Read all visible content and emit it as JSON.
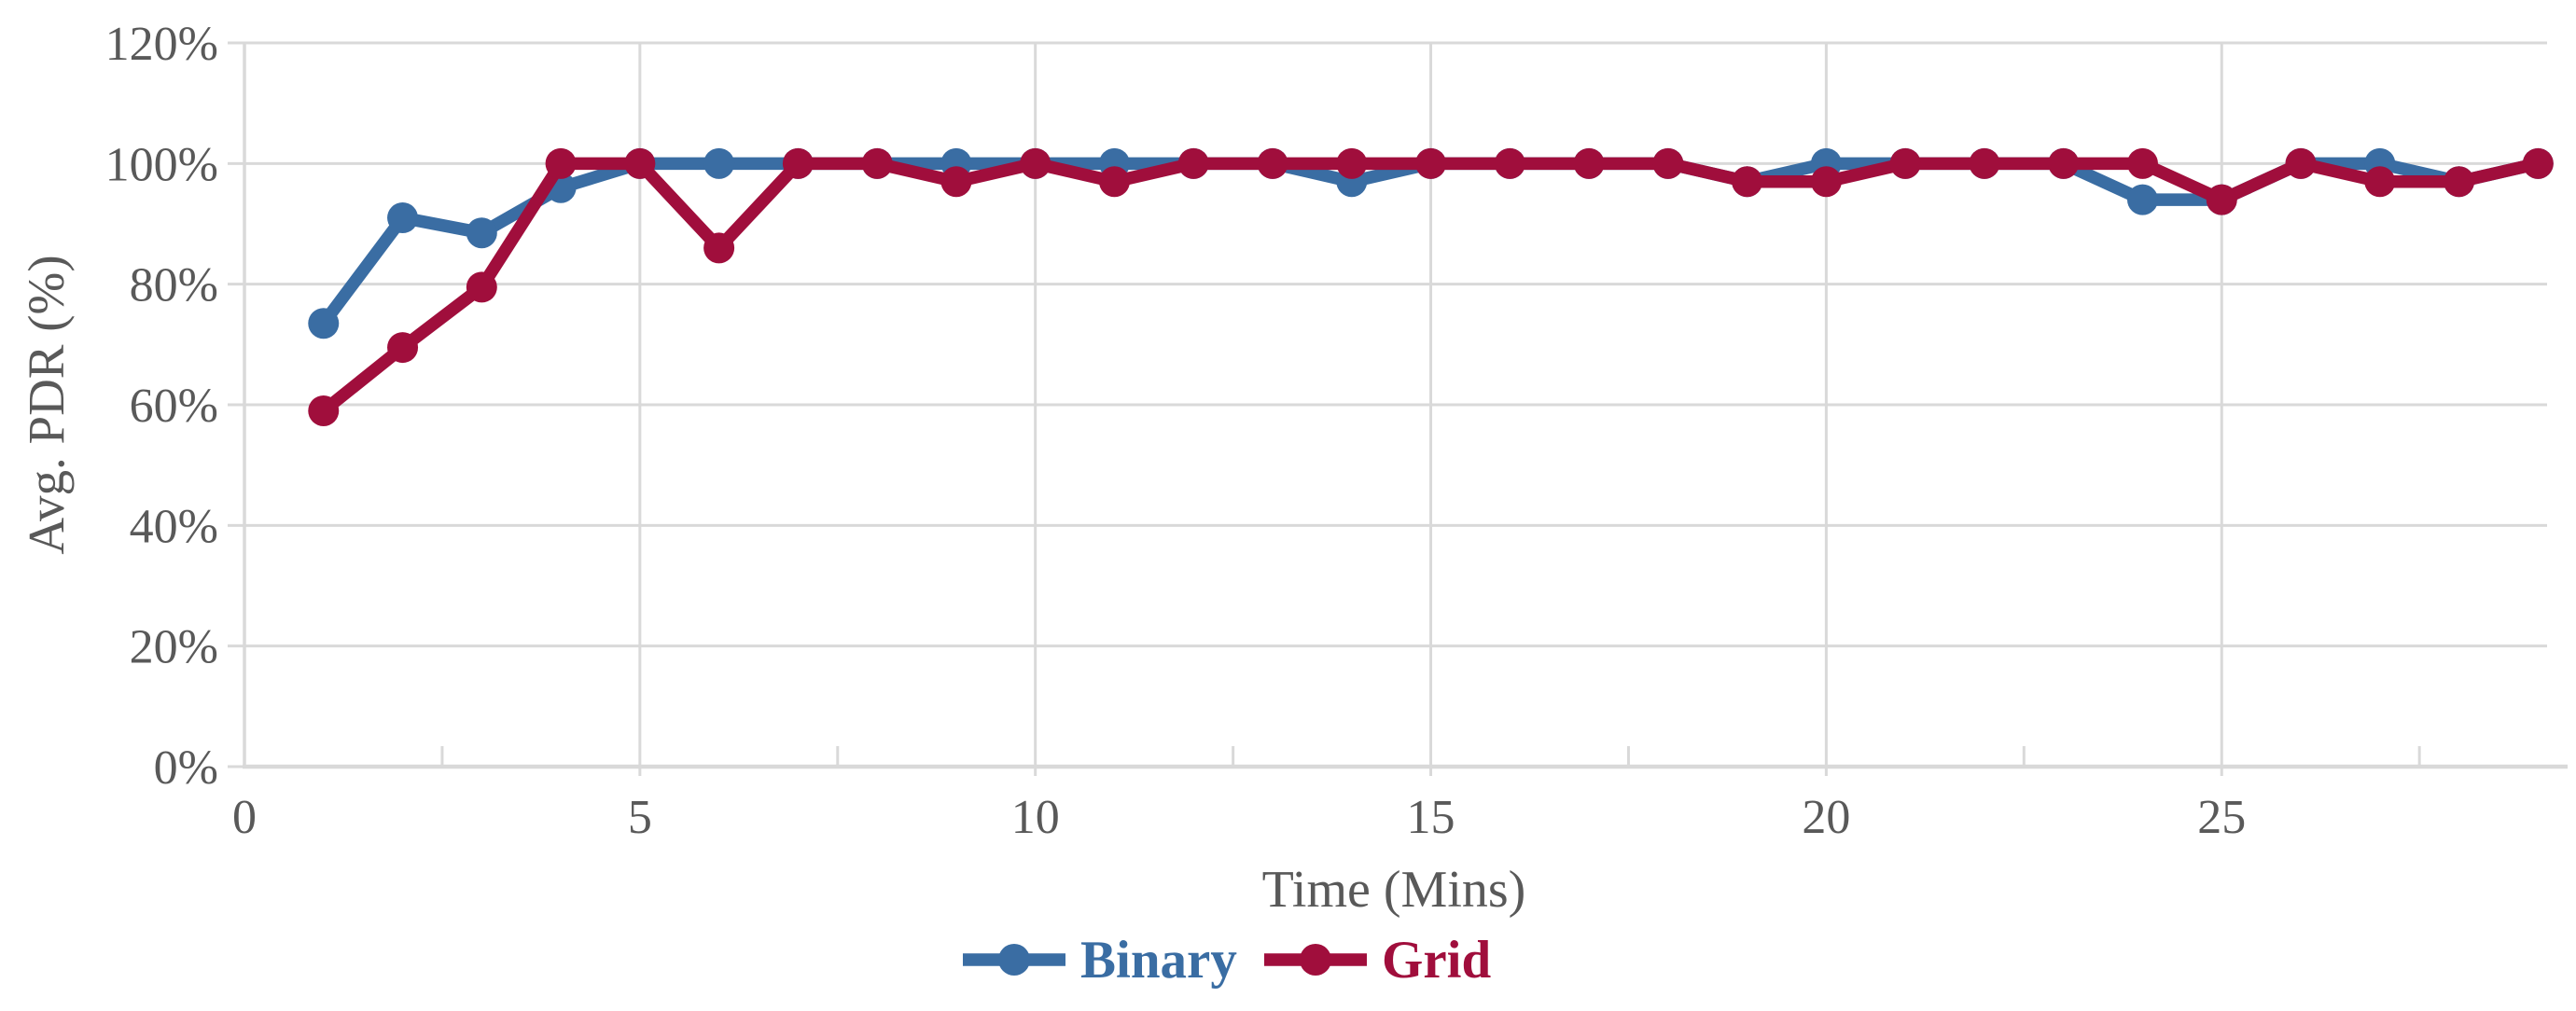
{
  "chart_data": {
    "type": "line",
    "title": "",
    "xlabel": "Time (Mins)",
    "ylabel": "Avg. PDR (%)",
    "x": [
      1,
      2,
      3,
      4,
      5,
      6,
      7,
      8,
      9,
      10,
      11,
      12,
      13,
      14,
      15,
      16,
      17,
      18,
      19,
      20,
      21,
      22,
      23,
      24,
      25,
      26,
      27,
      28,
      29
    ],
    "series": [
      {
        "name": "Binary",
        "color": "#3A6DA3",
        "values": [
          73.5,
          91,
          88.5,
          96,
          100,
          100,
          100,
          100,
          100,
          100,
          100,
          100,
          100,
          97,
          100,
          100,
          100,
          100,
          97,
          100,
          100,
          100,
          100,
          94,
          94,
          100,
          100,
          97,
          100
        ]
      },
      {
        "name": "Grid",
        "color": "#A00E3C",
        "values": [
          59,
          69.5,
          79.5,
          100,
          100,
          86,
          100,
          100,
          97,
          100,
          97,
          100,
          100,
          100,
          100,
          100,
          100,
          100,
          97,
          97,
          100,
          100,
          100,
          100,
          94,
          100,
          97,
          97,
          100
        ]
      }
    ],
    "xlim": [
      0,
      29.3
    ],
    "ylim": [
      0,
      120
    ],
    "x_ticks": [
      0,
      5,
      10,
      15,
      20,
      25
    ],
    "x_tick_labels": [
      "0",
      "5",
      "10",
      "15",
      "20",
      "25"
    ],
    "x_minor_ticks": [
      2.5,
      7.5,
      12.5,
      17.5,
      22.5,
      27.5
    ],
    "y_ticks": [
      0,
      20,
      40,
      60,
      80,
      100,
      120
    ],
    "y_tick_labels": [
      "0%",
      "20%",
      "40%",
      "60%",
      "80%",
      "100%",
      "120%"
    ],
    "grid": "both",
    "legend_position": "bottom-center"
  },
  "legend": {
    "items": [
      {
        "label": "Binary",
        "color": "#3A6DA3"
      },
      {
        "label": "Grid",
        "color": "#A00E3C"
      }
    ]
  },
  "style_colors": {
    "gridline": "#D9D9D9",
    "axis_line": "#D9D9D9",
    "tick_text": "#595959",
    "axis_title_text": "#595959",
    "background": "#FFFFFF"
  }
}
